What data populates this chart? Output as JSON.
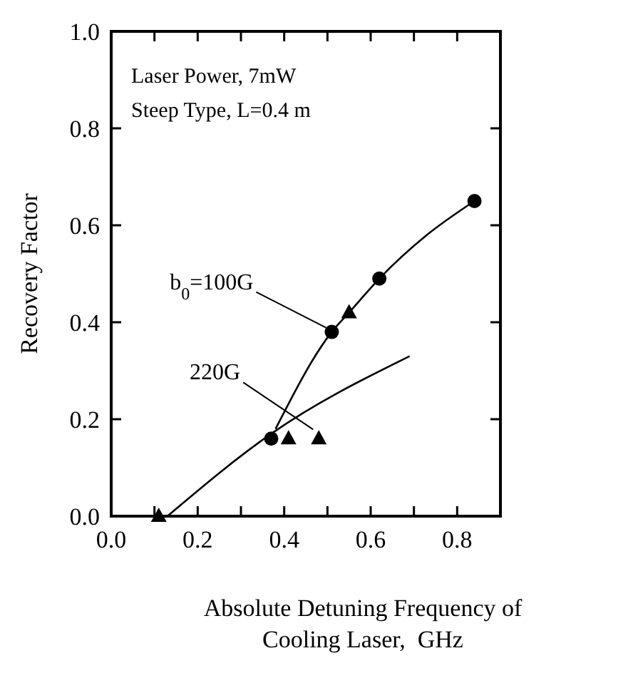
{
  "chart_data": {
    "type": "scatter",
    "xlabel": "Absolute Detuning Frequency of\nCooling Laser,  GHz",
    "ylabel": "Recovery Factor",
    "xlim": [
      0,
      0.9
    ],
    "ylim": [
      0,
      1.0
    ],
    "xticks": [
      {
        "value": 0,
        "label": "0.0"
      },
      {
        "value": 0.1,
        "label": null
      },
      {
        "value": 0.2,
        "label": "0.2"
      },
      {
        "value": 0.3,
        "label": null
      },
      {
        "value": 0.4,
        "label": "0.4"
      },
      {
        "value": 0.5,
        "label": null
      },
      {
        "value": 0.6,
        "label": "0.6"
      },
      {
        "value": 0.7,
        "label": null
      },
      {
        "value": 0.8,
        "label": "0.8"
      }
    ],
    "yticks": [
      {
        "value": 0,
        "label": "0.0"
      },
      {
        "value": 0.2,
        "label": "0.2"
      },
      {
        "value": 0.4,
        "label": "0.4"
      },
      {
        "value": 0.6,
        "label": "0.6"
      },
      {
        "value": 0.8,
        "label": "0.8"
      },
      {
        "value": 1.0,
        "label": "1.0"
      }
    ],
    "grid": false,
    "series": [
      {
        "marker": "circle",
        "color": "#000000",
        "x": [
          0.37,
          0.51,
          0.62,
          0.84
        ],
        "values": [
          0.16,
          0.38,
          0.49,
          0.65
        ]
      },
      {
        "marker": "triangle",
        "color": "#000000",
        "x": [
          0.11,
          0.41,
          0.48,
          0.55
        ],
        "values": [
          0.0,
          0.16,
          0.16,
          0.42
        ]
      },
      {
        "type": "line",
        "marker": "none",
        "color": "#000000",
        "x": [
          0.38,
          0.51,
          0.55,
          0.62,
          0.73,
          0.84
        ],
        "values": [
          0.18,
          0.38,
          0.42,
          0.49,
          0.58,
          0.65
        ]
      },
      {
        "type": "line",
        "marker": "none",
        "color": "#000000",
        "x": [
          0.13,
          0.37,
          0.69
        ],
        "values": [
          0.0,
          0.17,
          0.33
        ]
      }
    ],
    "annotations": [
      "Laser Power, 7mW",
      "Steep Type, L=0.4 m",
      {
        "text": "b$_{0}$=100G",
        "x": 0.51,
        "y": 0.38
      },
      {
        "text": "220G",
        "x": 0.48,
        "y": 0.17
      }
    ]
  }
}
